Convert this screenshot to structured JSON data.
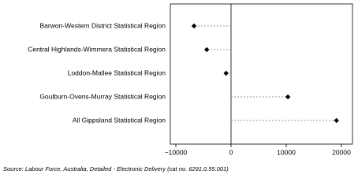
{
  "chart_data": {
    "type": "dot",
    "categories": [
      "Barwon-Western District Statistical Region",
      "Central Highlands-Wimmera Statistical Region",
      "Loddon-Mallee Statistical Region",
      "Goulburn-Ovens-Murray Statistical Region",
      "All Gippsland Statistical Region"
    ],
    "values": [
      -6700,
      -4400,
      -900,
      10300,
      19100
    ],
    "color": "#000000",
    "xlim": [
      -11000,
      22000
    ],
    "xticks": [
      {
        "value": -10000,
        "label": "−10000"
      },
      0,
      10000,
      20000
    ],
    "source": "Source: Labour Force, Australia, Detailed - Electronic Delivery (cat no. 6291.0.55.001)"
  }
}
